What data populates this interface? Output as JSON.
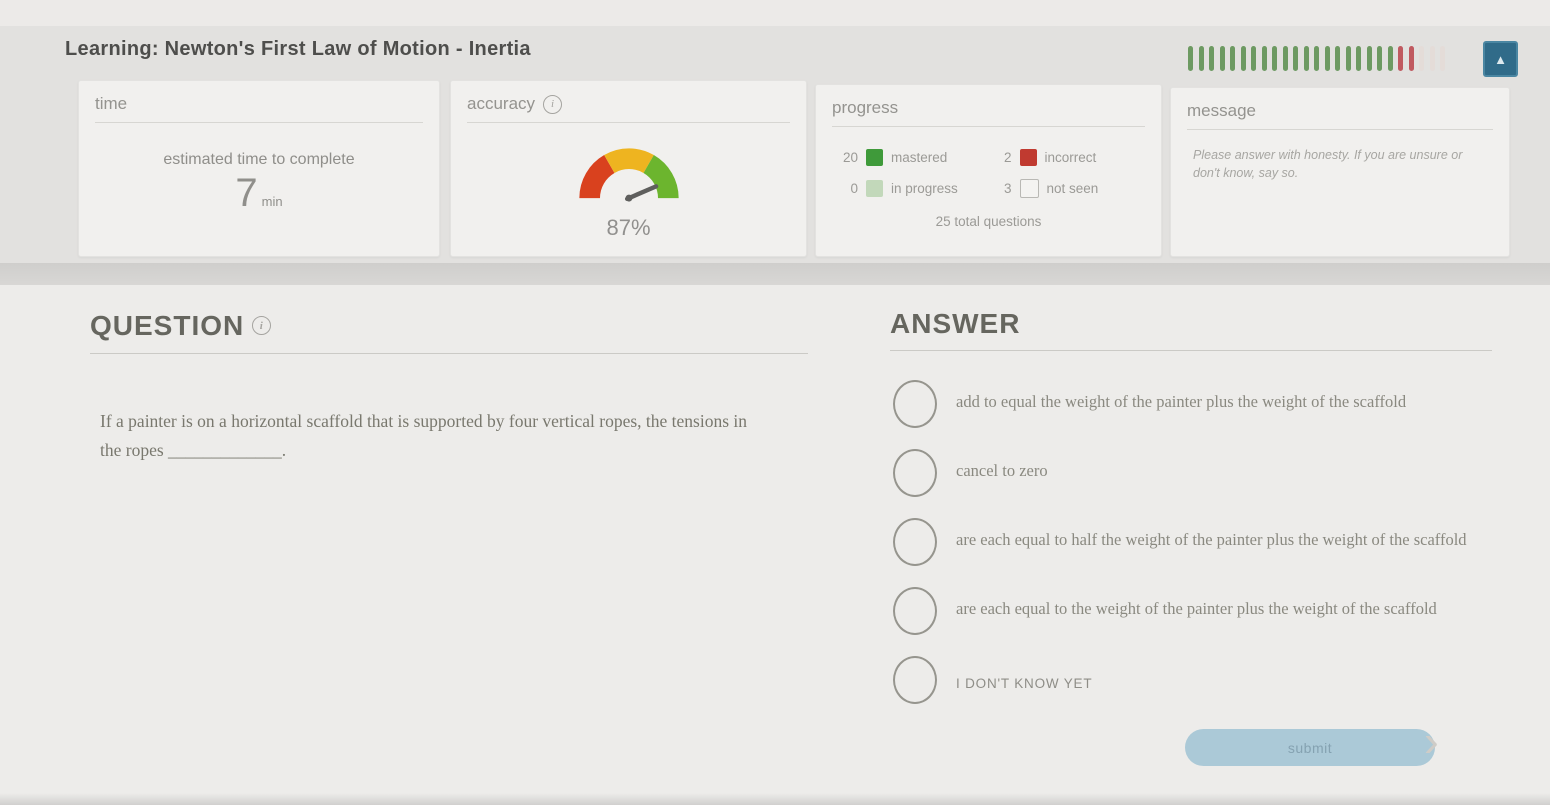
{
  "header": {
    "title": "Learning: Newton's First Law of Motion - Inertia",
    "tickbar": {
      "mastered": 20,
      "incorrect": 2,
      "not_seen": 3,
      "mastered_color": "#6d9a62",
      "incorrect_color": "#c05a60",
      "not_seen_color": "#e4dcd8"
    }
  },
  "icons": {
    "info": "i",
    "triangle_up": "▲",
    "chevron_right": "›"
  },
  "cards": {
    "time": {
      "label": "time",
      "caption": "estimated time to complete",
      "value": "7",
      "unit": "min"
    },
    "accuracy": {
      "label": "accuracy",
      "percent": 87,
      "value": "87%",
      "gauge": {
        "red": "#d9411e",
        "yellow": "#eeb420",
        "green": "#6cb52e",
        "needle": "#5f5f5d"
      }
    },
    "progress": {
      "label": "progress",
      "stats": [
        {
          "key": "mastered",
          "count": "20",
          "label": "mastered",
          "color": "#3f9a3a",
          "outline": false
        },
        {
          "key": "incorrect",
          "count": "2",
          "label": "incorrect",
          "color": "#c03a30",
          "outline": false
        },
        {
          "key": "in-progress",
          "count": "0",
          "label": "in progress",
          "color": "#c2d8ba",
          "outline": false
        },
        {
          "key": "not-seen",
          "count": "3",
          "label": "not seen",
          "color": "#f4f3f1",
          "outline": true
        }
      ],
      "total": "25 total questions"
    },
    "message": {
      "label": "message",
      "body": "Please answer with honesty. If you are unsure or don't know, say so."
    }
  },
  "question": {
    "heading": "QUESTION",
    "text": "If a painter is on a horizontal scaffold that is supported by four vertical ropes, the tensions in the ropes _____________."
  },
  "answer": {
    "heading": "ANSWER",
    "options": [
      {
        "label": "add to equal the weight of the painter plus the weight of the scaffold",
        "caps": false
      },
      {
        "label": "cancel to zero",
        "caps": false
      },
      {
        "label": "are each equal to half the weight of the painter plus the weight of the scaffold",
        "caps": false
      },
      {
        "label": "are each equal to the weight of the painter plus the weight of the scaffold",
        "caps": false
      },
      {
        "label": "I DON'T KNOW YET",
        "caps": true
      }
    ],
    "submit_label": "submit"
  }
}
